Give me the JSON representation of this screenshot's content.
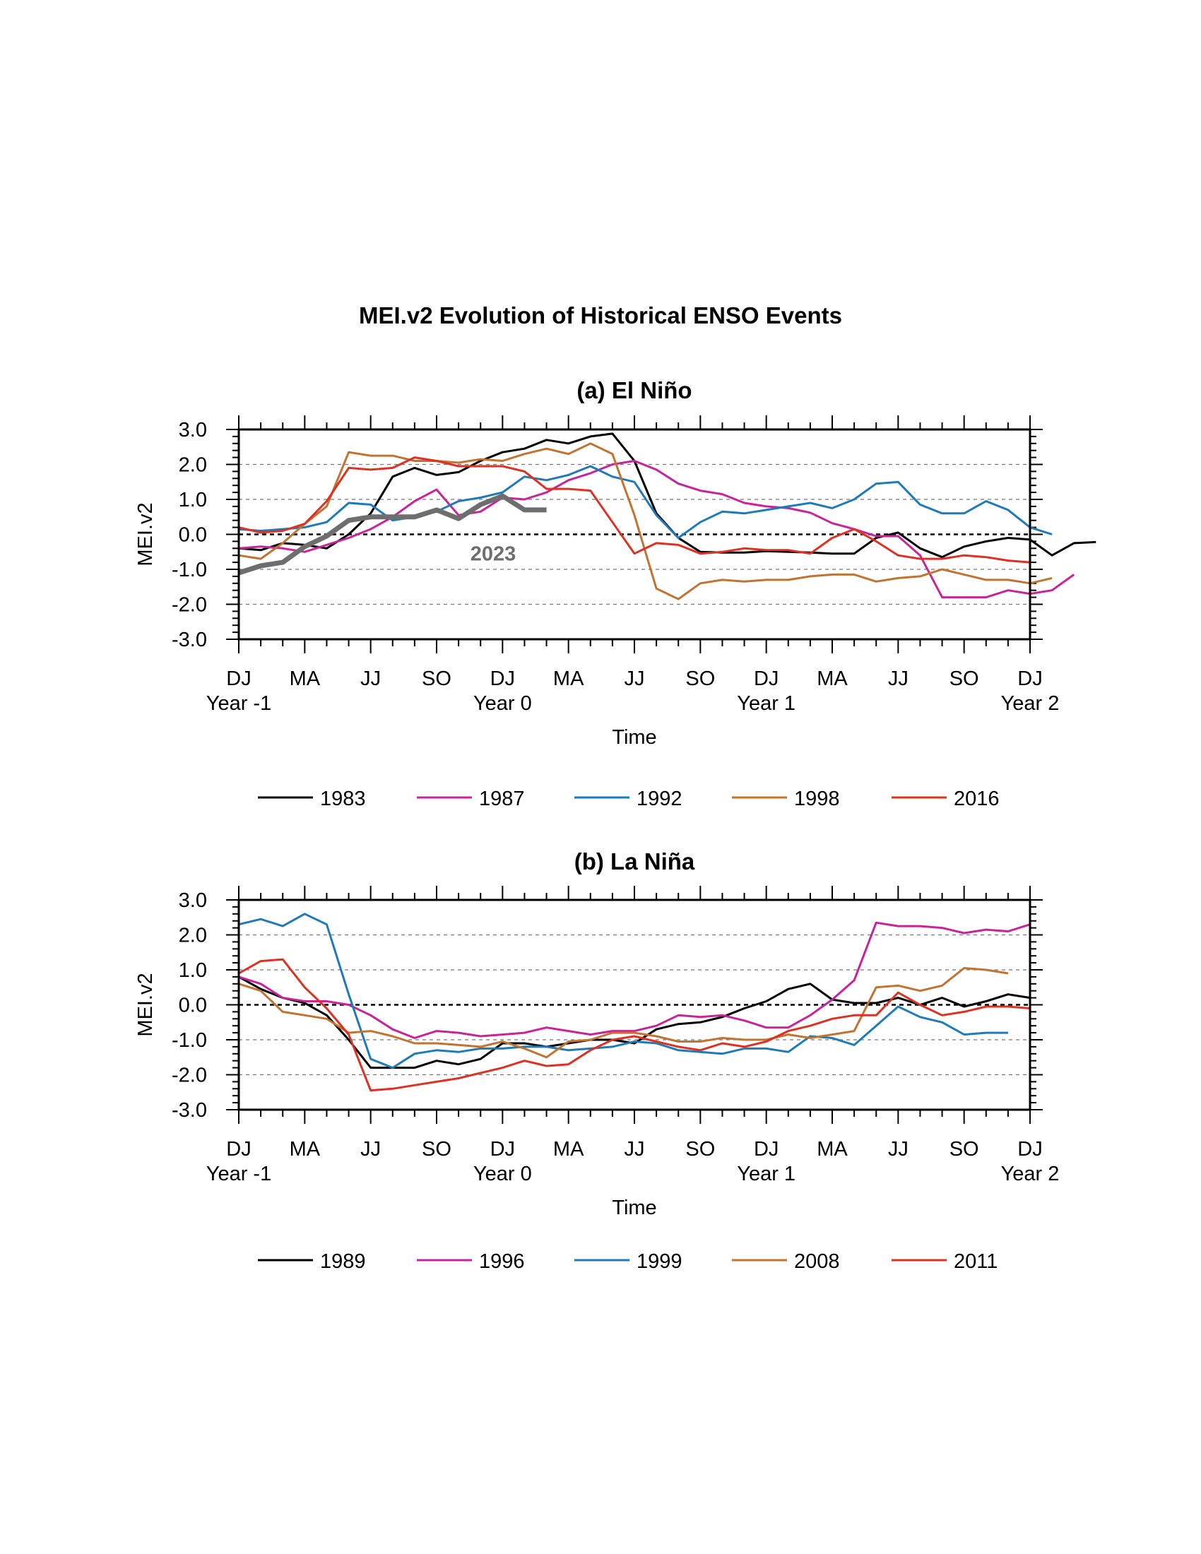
{
  "title": "MEI.v2 Evolution of Historical ENSO Events",
  "chart_data": [
    {
      "type": "line",
      "title": "(a) El Niño",
      "xlabel": "Time",
      "ylabel": "MEI.v2",
      "ylim": [
        -3.0,
        3.0
      ],
      "yticks": [
        "3.0",
        "2.0",
        "1.0",
        "0.0",
        "-1.0",
        "-2.0",
        "-3.0"
      ],
      "xticks": [
        "DJ",
        "MA",
        "JJ",
        "SO",
        "DJ",
        "MA",
        "JJ",
        "SO",
        "DJ",
        "MA",
        "JJ",
        "SO",
        "DJ"
      ],
      "year_labels": [
        "Year -1",
        "Year 0",
        "Year 1",
        "Year 2"
      ],
      "grid": "dashed horizontal",
      "annotation": "2023",
      "series": [
        {
          "name": "1983",
          "color": "#000000",
          "values": [
            -0.4,
            -0.45,
            -0.25,
            -0.3,
            -0.4,
            0.0,
            0.6,
            1.65,
            1.9,
            1.7,
            1.78,
            2.1,
            2.35,
            2.45,
            2.7,
            2.6,
            2.8,
            2.88,
            2.1,
            0.6,
            -0.1,
            -0.5,
            -0.52,
            -0.52,
            -0.48,
            -0.5,
            -0.52,
            -0.55,
            -0.55,
            -0.1,
            0.05,
            -0.4,
            -0.65,
            -0.35,
            -0.2,
            -0.1,
            -0.15,
            -0.6,
            -0.25,
            -0.22
          ]
        },
        {
          "name": "1987",
          "color": "#c8249a",
          "values": [
            -0.4,
            -0.35,
            -0.4,
            -0.5,
            -0.3,
            -0.1,
            0.15,
            0.5,
            0.95,
            1.28,
            0.55,
            0.65,
            1.05,
            1.0,
            1.2,
            1.55,
            1.75,
            2.0,
            2.1,
            1.85,
            1.45,
            1.25,
            1.15,
            0.9,
            0.8,
            0.75,
            0.62,
            0.32,
            0.15,
            -0.05,
            -0.05,
            -0.6,
            -1.8,
            -1.8,
            -1.8,
            -1.6,
            -1.7,
            -1.6,
            -1.15
          ]
        },
        {
          "name": "1992",
          "color": "#1f7ab8",
          "values": [
            0.15,
            0.1,
            0.15,
            0.2,
            0.35,
            0.9,
            0.85,
            0.4,
            0.5,
            0.65,
            0.95,
            1.05,
            1.2,
            1.65,
            1.55,
            1.7,
            1.95,
            1.65,
            1.5,
            0.55,
            -0.1,
            0.35,
            0.65,
            0.6,
            0.7,
            0.8,
            0.9,
            0.75,
            1.0,
            1.45,
            1.5,
            0.85,
            0.6,
            0.6,
            0.95,
            0.7,
            0.2,
            0.0
          ]
        },
        {
          "name": "1998",
          "color": "#c27331",
          "values": [
            -0.6,
            -0.7,
            -0.25,
            0.3,
            0.8,
            2.35,
            2.25,
            2.25,
            2.1,
            2.1,
            2.05,
            2.15,
            2.1,
            2.3,
            2.45,
            2.3,
            2.6,
            2.3,
            0.55,
            -1.55,
            -1.85,
            -1.4,
            -1.3,
            -1.35,
            -1.3,
            -1.3,
            -1.2,
            -1.15,
            -1.15,
            -1.35,
            -1.25,
            -1.2,
            -1.0,
            -1.15,
            -1.3,
            -1.3,
            -1.4,
            -1.25
          ]
        },
        {
          "name": "2016",
          "color": "#dc3223",
          "values": [
            0.2,
            0.05,
            0.1,
            0.3,
            0.95,
            1.9,
            1.85,
            1.9,
            2.2,
            2.1,
            1.95,
            1.95,
            1.95,
            1.8,
            1.3,
            1.3,
            1.25,
            0.35,
            -0.55,
            -0.25,
            -0.3,
            -0.55,
            -0.5,
            -0.4,
            -0.45,
            -0.45,
            -0.55,
            -0.1,
            0.15,
            -0.2,
            -0.6,
            -0.7,
            -0.7,
            -0.6,
            -0.65,
            -0.75,
            -0.8
          ]
        },
        {
          "name": "2023",
          "color": "#6e6e6e",
          "values": [
            -1.1,
            -0.9,
            -0.8,
            -0.35,
            -0.05,
            0.4,
            0.5,
            0.5,
            0.5,
            0.7,
            0.45,
            0.85,
            1.1,
            0.7,
            0.7
          ]
        }
      ]
    },
    {
      "type": "line",
      "title": "(b) La Niña",
      "xlabel": "Time",
      "ylabel": "MEI.v2",
      "ylim": [
        -3.0,
        3.0
      ],
      "yticks": [
        "3.0",
        "2.0",
        "1.0",
        "0.0",
        "-1.0",
        "-2.0",
        "-3.0"
      ],
      "xticks": [
        "DJ",
        "MA",
        "JJ",
        "SO",
        "DJ",
        "MA",
        "JJ",
        "SO",
        "DJ",
        "MA",
        "JJ",
        "SO",
        "DJ"
      ],
      "year_labels": [
        "Year -1",
        "Year 0",
        "Year 1",
        "Year 2"
      ],
      "grid": "dashed horizontal",
      "series": [
        {
          "name": "1989",
          "color": "#000000",
          "values": [
            0.8,
            0.45,
            0.2,
            0.05,
            -0.3,
            -1.0,
            -1.8,
            -1.8,
            -1.8,
            -1.6,
            -1.7,
            -1.55,
            -1.1,
            -1.1,
            -1.2,
            -1.1,
            -1.0,
            -1.0,
            -1.1,
            -0.7,
            -0.55,
            -0.5,
            -0.35,
            -0.1,
            0.1,
            0.45,
            0.6,
            0.15,
            0.05,
            0.05,
            0.2,
            0.0,
            0.2,
            -0.05,
            0.1,
            0.3,
            0.2
          ]
        },
        {
          "name": "1996",
          "color": "#c8249a",
          "values": [
            0.8,
            0.6,
            0.2,
            0.1,
            0.1,
            0.0,
            -0.3,
            -0.7,
            -0.95,
            -0.75,
            -0.8,
            -0.9,
            -0.85,
            -0.8,
            -0.65,
            -0.75,
            -0.85,
            -0.75,
            -0.75,
            -0.6,
            -0.3,
            -0.35,
            -0.3,
            -0.45,
            -0.65,
            -0.65,
            -0.3,
            0.15,
            0.7,
            2.35,
            2.25,
            2.25,
            2.2,
            2.05,
            2.15,
            2.1,
            2.3
          ]
        },
        {
          "name": "1999",
          "color": "#1f7ab8",
          "values": [
            2.3,
            2.45,
            2.25,
            2.6,
            2.3,
            0.3,
            -1.55,
            -1.8,
            -1.4,
            -1.3,
            -1.35,
            -1.25,
            -1.25,
            -1.2,
            -1.2,
            -1.3,
            -1.25,
            -1.2,
            -1.05,
            -1.1,
            -1.3,
            -1.35,
            -1.4,
            -1.25,
            -1.25,
            -1.35,
            -0.9,
            -0.95,
            -1.15,
            -0.6,
            -0.05,
            -0.35,
            -0.5,
            -0.85,
            -0.8,
            -0.8
          ]
        },
        {
          "name": "2008",
          "color": "#c27331",
          "values": [
            0.6,
            0.4,
            -0.2,
            -0.3,
            -0.4,
            -0.8,
            -0.75,
            -0.9,
            -1.1,
            -1.1,
            -1.15,
            -1.2,
            -1.05,
            -1.25,
            -1.5,
            -1.05,
            -1.0,
            -0.8,
            -0.8,
            -0.9,
            -1.05,
            -1.05,
            -0.95,
            -1.0,
            -1.0,
            -0.85,
            -0.95,
            -0.85,
            -0.75,
            0.5,
            0.55,
            0.4,
            0.55,
            1.05,
            1.0,
            0.9
          ]
        },
        {
          "name": "2011",
          "color": "#dc3223",
          "values": [
            0.9,
            1.25,
            1.3,
            0.5,
            -0.1,
            -0.85,
            -2.45,
            -2.4,
            -2.3,
            -2.2,
            -2.1,
            -1.95,
            -1.8,
            -1.6,
            -1.75,
            -1.7,
            -1.3,
            -1.0,
            -0.9,
            -1.05,
            -1.2,
            -1.3,
            -1.1,
            -1.2,
            -1.05,
            -0.75,
            -0.6,
            -0.4,
            -0.3,
            -0.3,
            0.35,
            0.0,
            -0.3,
            -0.2,
            -0.05,
            -0.05,
            -0.1
          ]
        }
      ]
    }
  ]
}
